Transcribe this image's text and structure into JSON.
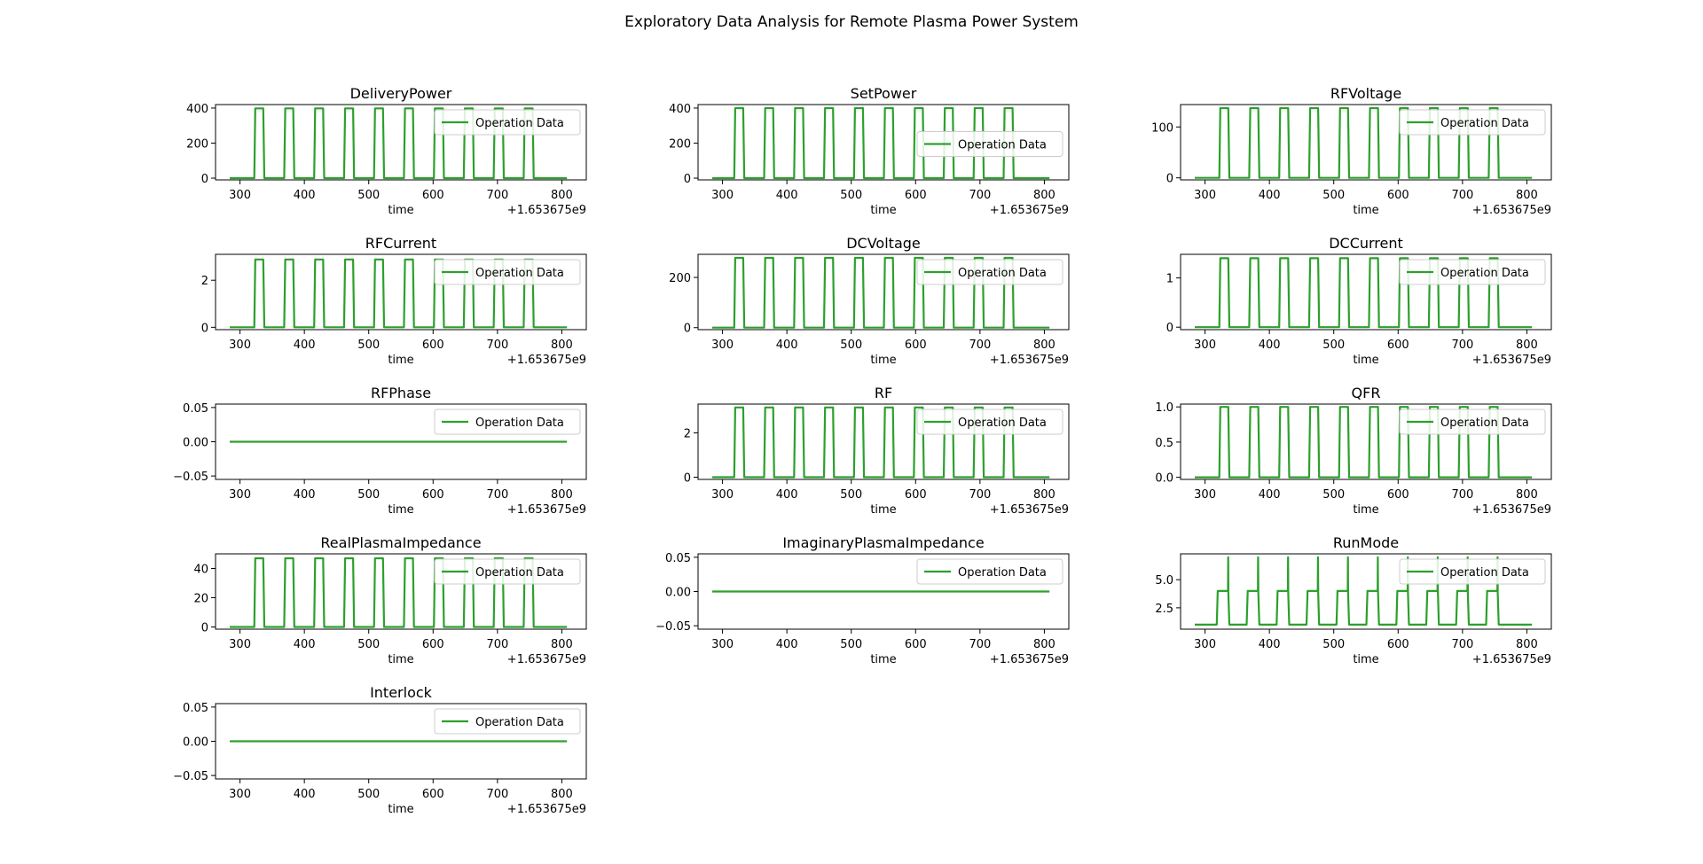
{
  "figure": {
    "title": "Exploratory Data Analysis for Remote Plasma Power System"
  },
  "colors": {
    "series": "#2ca02c",
    "axes": "#000000",
    "legend_border": "#cccccc"
  },
  "chart_data": [
    {
      "type": "line",
      "title": "DeliveryPower",
      "xlabel": "time",
      "offset": "+1.653675e9",
      "xlim": [
        262,
        838
      ],
      "xticks": [
        "300",
        "400",
        "500",
        "600",
        "700",
        "800"
      ],
      "ylim": [
        -10,
        420
      ],
      "yticks": [
        {
          "v": 0,
          "l": "0"
        },
        {
          "v": 200,
          "l": "200"
        },
        {
          "v": 400,
          "l": "400"
        }
      ],
      "legend": "top-right",
      "series": [
        {
          "name": "Operation Data"
        }
      ],
      "signal": {
        "x_start": 284,
        "x_end": 808,
        "x_first_on": 323,
        "period": 46.5,
        "on_duration": 14,
        "cycles": 10,
        "low": 0,
        "high": 398
      }
    },
    {
      "type": "line",
      "title": "SetPower",
      "xlabel": "time",
      "offset": "+1.653675e9",
      "xlim": [
        262,
        838
      ],
      "xticks": [
        "300",
        "400",
        "500",
        "600",
        "700",
        "800"
      ],
      "ylim": [
        -10,
        420
      ],
      "yticks": [
        {
          "v": 0,
          "l": "0"
        },
        {
          "v": 200,
          "l": "200"
        },
        {
          "v": 400,
          "l": "400"
        }
      ],
      "legend": "center-right",
      "series": [
        {
          "name": "Operation Data"
        }
      ],
      "signal": {
        "x_start": 284,
        "x_end": 808,
        "x_first_on": 319,
        "period": 46.5,
        "on_duration": 14,
        "cycles": 10,
        "low": 0,
        "high": 400
      }
    },
    {
      "type": "line",
      "title": "RFVoltage",
      "xlabel": "time",
      "offset": "+1.653675e9",
      "xlim": [
        262,
        838
      ],
      "xticks": [
        "300",
        "400",
        "500",
        "600",
        "700",
        "800"
      ],
      "ylim": [
        -4,
        144
      ],
      "yticks": [
        {
          "v": 0,
          "l": "0"
        },
        {
          "v": 100,
          "l": "100"
        }
      ],
      "legend": "top-right",
      "series": [
        {
          "name": "Operation Data"
        }
      ],
      "signal": {
        "x_start": 284,
        "x_end": 808,
        "x_first_on": 323,
        "period": 46.5,
        "on_duration": 14,
        "cycles": 10,
        "low": 0,
        "high": 137
      }
    },
    {
      "type": "line",
      "title": "RFCurrent",
      "xlabel": "time",
      "offset": "+1.653675e9",
      "xlim": [
        262,
        838
      ],
      "xticks": [
        "300",
        "400",
        "500",
        "600",
        "700",
        "800"
      ],
      "ylim": [
        -0.1,
        3.1
      ],
      "yticks": [
        {
          "v": 0,
          "l": "0"
        },
        {
          "v": 2,
          "l": "2"
        }
      ],
      "legend": "top-right",
      "series": [
        {
          "name": "Operation Data"
        }
      ],
      "signal": {
        "x_start": 284,
        "x_end": 808,
        "x_first_on": 323,
        "period": 46.5,
        "on_duration": 14,
        "cycles": 10,
        "low": 0,
        "high": 2.88
      }
    },
    {
      "type": "line",
      "title": "DCVoltage",
      "xlabel": "time",
      "offset": "+1.653675e9",
      "xlim": [
        262,
        838
      ],
      "xticks": [
        "300",
        "400",
        "500",
        "600",
        "700",
        "800"
      ],
      "ylim": [
        -8,
        292
      ],
      "yticks": [
        {
          "v": 0,
          "l": "0"
        },
        {
          "v": 200,
          "l": "200"
        }
      ],
      "legend": "top-right",
      "series": [
        {
          "name": "Operation Data"
        }
      ],
      "signal": {
        "x_start": 284,
        "x_end": 808,
        "x_first_on": 319,
        "period": 46.5,
        "on_duration": 14,
        "cycles": 10,
        "low": 0,
        "high": 278
      }
    },
    {
      "type": "line",
      "title": "DCCurrent",
      "xlabel": "time",
      "offset": "+1.653675e9",
      "xlim": [
        262,
        838
      ],
      "xticks": [
        "300",
        "400",
        "500",
        "600",
        "700",
        "800"
      ],
      "ylim": [
        -0.05,
        1.48
      ],
      "yticks": [
        {
          "v": 0,
          "l": "0"
        },
        {
          "v": 1,
          "l": "1"
        }
      ],
      "legend": "top-right",
      "series": [
        {
          "name": "Operation Data"
        }
      ],
      "signal": {
        "x_start": 284,
        "x_end": 808,
        "x_first_on": 323,
        "period": 46.5,
        "on_duration": 14,
        "cycles": 10,
        "low": 0,
        "high": 1.4
      }
    },
    {
      "type": "line",
      "title": "RFPhase",
      "xlabel": "time",
      "offset": "+1.653675e9",
      "xlim": [
        262,
        838
      ],
      "xticks": [
        "300",
        "400",
        "500",
        "600",
        "700",
        "800"
      ],
      "ylim": [
        -0.055,
        0.055
      ],
      "yticks": [
        {
          "v": 0.05,
          "l": "0.05"
        },
        {
          "v": 0,
          "l": "0.00"
        },
        {
          "v": -0.05,
          "l": "−0.05"
        }
      ],
      "legend": "top-right",
      "series": [
        {
          "name": "Operation Data"
        }
      ],
      "signal": {
        "x_start": 284,
        "x_end": 808,
        "cycles": 0,
        "low": 0,
        "high": 0
      }
    },
    {
      "type": "line",
      "title": "RF",
      "xlabel": "time",
      "offset": "+1.653675e9",
      "xlim": [
        262,
        838
      ],
      "xticks": [
        "300",
        "400",
        "500",
        "600",
        "700",
        "800"
      ],
      "ylim": [
        -0.1,
        3.3
      ],
      "yticks": [
        {
          "v": 0,
          "l": "0"
        },
        {
          "v": 2,
          "l": "2"
        }
      ],
      "legend": "top-right",
      "series": [
        {
          "name": "Operation Data"
        }
      ],
      "signal": {
        "x_start": 284,
        "x_end": 808,
        "x_first_on": 319,
        "period": 46.5,
        "on_duration": 14,
        "cycles": 10,
        "low": 0,
        "high": 3.15
      }
    },
    {
      "type": "line",
      "title": "QFR",
      "xlabel": "time",
      "offset": "+1.653675e9",
      "xlim": [
        262,
        838
      ],
      "xticks": [
        "300",
        "400",
        "500",
        "600",
        "700",
        "800"
      ],
      "ylim": [
        -0.03,
        1.04
      ],
      "yticks": [
        {
          "v": 0,
          "l": "0.0"
        },
        {
          "v": 0.5,
          "l": "0.5"
        },
        {
          "v": 1,
          "l": "1.0"
        }
      ],
      "legend": "top-right",
      "series": [
        {
          "name": "Operation Data"
        }
      ],
      "signal": {
        "x_start": 284,
        "x_end": 808,
        "x_first_on": 323,
        "period": 46.5,
        "on_duration": 14,
        "cycles": 10,
        "low": 0,
        "high": 1
      }
    },
    {
      "type": "line",
      "title": "RealPlasmaImpedance",
      "xlabel": "time",
      "offset": "+1.653675e9",
      "xlim": [
        262,
        838
      ],
      "xticks": [
        "300",
        "400",
        "500",
        "600",
        "700",
        "800"
      ],
      "ylim": [
        -1.5,
        50
      ],
      "yticks": [
        {
          "v": 0,
          "l": "0"
        },
        {
          "v": 20,
          "l": "20"
        },
        {
          "v": 40,
          "l": "40"
        }
      ],
      "legend": "top-right",
      "series": [
        {
          "name": "Operation Data"
        }
      ],
      "signal": {
        "x_start": 284,
        "x_end": 808,
        "x_first_on": 323,
        "period": 46.5,
        "on_duration": 14,
        "cycles": 10,
        "low": 0,
        "high": 47
      }
    },
    {
      "type": "line",
      "title": "ImaginaryPlasmaImpedance",
      "xlabel": "time",
      "offset": "+1.653675e9",
      "xlim": [
        262,
        838
      ],
      "xticks": [
        "300",
        "400",
        "500",
        "600",
        "700",
        "800"
      ],
      "ylim": [
        -0.055,
        0.055
      ],
      "yticks": [
        {
          "v": 0.05,
          "l": "0.05"
        },
        {
          "v": 0,
          "l": "0.00"
        },
        {
          "v": -0.05,
          "l": "−0.05"
        }
      ],
      "legend": "top-right",
      "series": [
        {
          "name": "Operation Data"
        }
      ],
      "signal": {
        "x_start": 284,
        "x_end": 808,
        "cycles": 0,
        "low": 0,
        "high": 0
      }
    },
    {
      "type": "line",
      "title": "RunMode",
      "xlabel": "time",
      "offset": "+1.653675e9",
      "xlim": [
        262,
        838
      ],
      "xticks": [
        "300",
        "400",
        "500",
        "600",
        "700",
        "800"
      ],
      "ylim": [
        0.6,
        7.3
      ],
      "yticks": [
        {
          "v": 2.5,
          "l": "2.5"
        },
        {
          "v": 5,
          "l": "5.0"
        }
      ],
      "legend": "top-right",
      "series": [
        {
          "name": "Operation Data"
        }
      ],
      "signal": {
        "x_start": 284,
        "x_end": 808,
        "x_first_on": 319,
        "period": 46.5,
        "on_duration": 18,
        "cycles": 10,
        "low": 1,
        "high": 4,
        "spike": 7,
        "spike_offset": 17
      }
    },
    {
      "type": "line",
      "title": "Interlock",
      "xlabel": "time",
      "offset": "+1.653675e9",
      "xlim": [
        262,
        838
      ],
      "xticks": [
        "300",
        "400",
        "500",
        "600",
        "700",
        "800"
      ],
      "ylim": [
        -0.055,
        0.055
      ],
      "yticks": [
        {
          "v": 0.05,
          "l": "0.05"
        },
        {
          "v": 0,
          "l": "0.00"
        },
        {
          "v": -0.05,
          "l": "−0.05"
        }
      ],
      "legend": "top-right",
      "series": [
        {
          "name": "Operation Data"
        }
      ],
      "signal": {
        "x_start": 284,
        "x_end": 808,
        "cycles": 0,
        "low": 0,
        "high": 0
      }
    }
  ]
}
